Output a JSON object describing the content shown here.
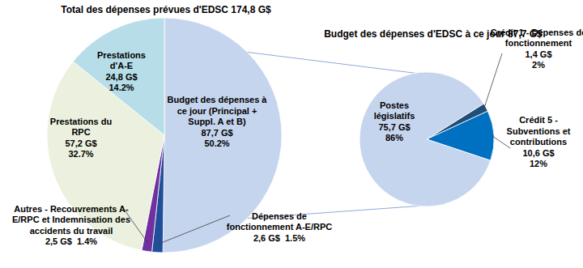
{
  "chart_data": [
    {
      "type": "pie",
      "title": "Total des dépenses prévues d'EDSC 174,8 G$",
      "categories": [
        "Budget des dépenses à ce jour (Principal + Suppl. A et B)",
        "Dépenses de fonctionnement A-E/RPC",
        "Autres - Recouvrements A-E/RPC et Indemnisation des accidents du travail",
        "Prestations du RPC",
        "Prestations d'A-E"
      ],
      "values": [
        50.2,
        1.5,
        1.4,
        32.7,
        14.2
      ],
      "value_labels": [
        "50.2%",
        "1.5%",
        "1.4%",
        "32.7%",
        "14.2%"
      ],
      "amounts": [
        87.7,
        2.6,
        2.5,
        57.2,
        24.8
      ],
      "amount_labels": [
        "87,7 G$",
        "2,6 G$",
        "2,5 G$",
        "57,2 G$",
        "24,8 G$"
      ],
      "colors": [
        "#c6d5ee",
        "#1f4e9a",
        "#7030a0",
        "#ebf1de",
        "#b7dde8"
      ],
      "data_labels": true
    },
    {
      "type": "pie",
      "title": "Budget des dépenses d'EDSC à ce jour  87,7 G$",
      "categories": [
        "Crédit 1 - Dépenses de fonctionnement",
        "Crédit 5 - Subventions et contributions",
        "Postes législatifs"
      ],
      "values": [
        2,
        12,
        86
      ],
      "value_labels": [
        "2%",
        "12%",
        "86%"
      ],
      "amounts": [
        1.4,
        10.6,
        75.7
      ],
      "amount_labels": [
        "1,4 G$",
        "10,6 G$",
        "75,7 G$"
      ],
      "colors": [
        "#1f4e79",
        "#0070c0",
        "#c6d5ee"
      ],
      "data_labels": true
    }
  ]
}
